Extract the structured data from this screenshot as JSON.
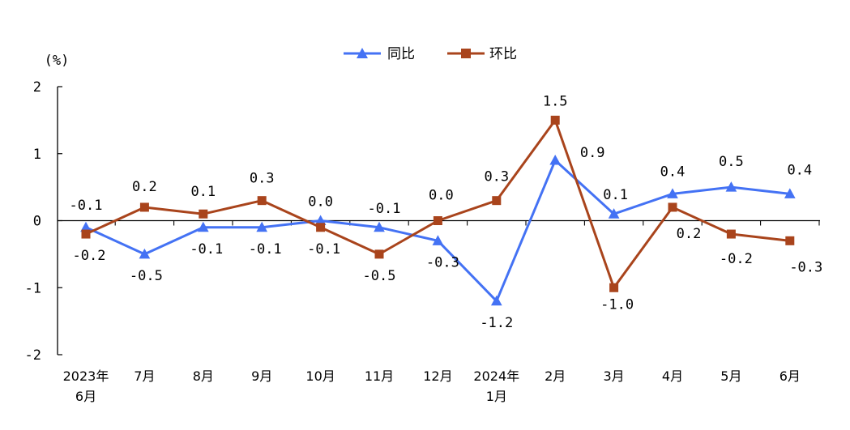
{
  "chart_data": {
    "type": "line",
    "ylabel": "(%)",
    "ylim": [
      -2,
      2
    ],
    "yticks": [
      "2",
      "1",
      "0",
      "-1",
      "-2"
    ],
    "categories": [
      [
        "2023年",
        "6月"
      ],
      [
        "7月"
      ],
      [
        "8月"
      ],
      [
        "9月"
      ],
      [
        "10月"
      ],
      [
        "11月"
      ],
      [
        "12月"
      ],
      [
        "2024年",
        "1月"
      ],
      [
        "2月"
      ],
      [
        "3月"
      ],
      [
        "4月"
      ],
      [
        "5月"
      ],
      [
        "6月"
      ]
    ],
    "series": [
      {
        "name": "同比",
        "color": "#4472f4",
        "marker": "triangle",
        "values": [
          -0.1,
          -0.5,
          -0.1,
          -0.1,
          0.0,
          -0.1,
          -0.3,
          -1.2,
          0.9,
          0.1,
          0.4,
          0.5,
          0.4
        ],
        "labels": [
          "-0.1",
          "-0.5",
          "-0.1",
          "-0.1",
          "0.0",
          "-0.1",
          "-0.3",
          "-1.2",
          "0.9",
          "0.1",
          "0.4",
          "0.5",
          "0.4"
        ]
      },
      {
        "name": "环比",
        "color": "#a9441c",
        "marker": "square",
        "values": [
          -0.2,
          0.2,
          0.1,
          0.3,
          -0.1,
          -0.5,
          0.0,
          0.3,
          1.5,
          -1.0,
          0.2,
          -0.2,
          -0.3
        ],
        "labels": [
          "-0.2",
          "0.2",
          "0.1",
          "0.3",
          "-0.1",
          "-0.5",
          "0.0",
          "0.3",
          "1.5",
          "-1.0",
          "0.2",
          "-0.2",
          "-0.3"
        ]
      }
    ],
    "legend": "top-center",
    "grid": false
  }
}
